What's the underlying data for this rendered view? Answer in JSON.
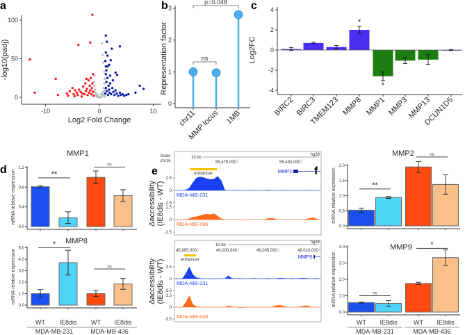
{
  "panel_labels": [
    "a",
    "b",
    "c",
    "d",
    "e",
    "f"
  ],
  "chart_data": [
    {
      "panel": "a",
      "type": "scatter",
      "xlabel": "Log2 Fold Change",
      "ylabel": "-log10(padj)",
      "xticks": [
        "-10",
        "0",
        "10"
      ],
      "xtick_values": [
        -10,
        0,
        10
      ],
      "yticks": [
        "0",
        "50",
        "100"
      ],
      "ytick_values": [
        0,
        50,
        100
      ],
      "series": [
        {
          "color": "#ff1a1a",
          "points": [
            [
              -1.3,
              107
            ],
            [
              -12.9,
              49
            ],
            [
              -3.9,
              68
            ],
            [
              -1.7,
              71
            ],
            [
              -8.1,
              24
            ],
            [
              -12,
              6
            ],
            [
              -7.7,
              3
            ],
            [
              -1.2,
              30
            ],
            [
              -6,
              5
            ],
            [
              -5.8,
              2
            ],
            [
              -5.5,
              8
            ],
            [
              -5,
              12
            ],
            [
              -4.8,
              4
            ],
            [
              -4.5,
              9
            ],
            [
              -4.2,
              6
            ],
            [
              -4,
              3
            ],
            [
              -3.8,
              10
            ],
            [
              -3.5,
              7
            ],
            [
              -3.2,
              5
            ],
            [
              -3,
              14
            ],
            [
              -2.8,
              4
            ],
            [
              -2.6,
              18
            ],
            [
              -2.5,
              8
            ],
            [
              -2.3,
              11
            ],
            [
              -2.2,
              3
            ],
            [
              -2,
              22
            ],
            [
              -1.9,
              6
            ],
            [
              -1.8,
              15
            ],
            [
              -1.7,
              9
            ],
            [
              -1.6,
              25
            ],
            [
              -1.5,
              4
            ],
            [
              -1.4,
              12
            ],
            [
              -1.3,
              18
            ],
            [
              -1.2,
              7
            ],
            [
              -2.4,
              24
            ],
            [
              -3.3,
              1
            ],
            [
              -4.6,
              1.5
            ],
            [
              -1.1,
              2
            ]
          ]
        },
        {
          "color": "#0a1fa8",
          "points": [
            [
              1.2,
              80
            ],
            [
              1.4,
              72
            ],
            [
              3.8,
              66
            ],
            [
              2.3,
              63
            ],
            [
              1.2,
              58
            ],
            [
              1.5,
              54
            ],
            [
              2.1,
              48
            ],
            [
              1.2,
              40
            ],
            [
              3.0,
              32
            ],
            [
              3.3,
              29
            ],
            [
              7.5,
              15
            ],
            [
              8.2,
              11
            ],
            [
              6.7,
              6
            ],
            [
              1.1,
              5
            ],
            [
              1.2,
              12
            ],
            [
              1.3,
              20
            ],
            [
              1.4,
              8
            ],
            [
              1.5,
              25
            ],
            [
              1.6,
              3
            ],
            [
              1.7,
              15
            ],
            [
              1.8,
              10
            ],
            [
              1.9,
              6
            ],
            [
              2,
              18
            ],
            [
              2.2,
              4
            ],
            [
              2.4,
              12
            ],
            [
              2.6,
              7
            ],
            [
              2.8,
              3
            ],
            [
              3,
              9
            ],
            [
              3.2,
              5
            ],
            [
              3.5,
              2
            ],
            [
              3.8,
              6
            ],
            [
              4,
              3
            ],
            [
              4.3,
              4
            ],
            [
              4.6,
              2
            ],
            [
              5,
              3
            ],
            [
              5.4,
              4
            ],
            [
              1.2,
              30
            ],
            [
              1.3,
              35
            ],
            [
              1.5,
              40
            ],
            [
              1.8,
              42
            ],
            [
              2.5,
              22
            ],
            [
              1.1,
              47
            ],
            [
              2.0,
              28
            ]
          ]
        },
        {
          "color": "#b8c4c0",
          "points": [
            [
              -1,
              20
            ],
            [
              -0.9,
              15
            ],
            [
              -0.8,
              10
            ],
            [
              -0.7,
              6
            ],
            [
              -0.6,
              4
            ],
            [
              -0.5,
              2
            ],
            [
              -0.4,
              1
            ],
            [
              -0.3,
              0.5
            ],
            [
              -0.2,
              0.2
            ],
            [
              0,
              0
            ],
            [
              0.2,
              0.3
            ],
            [
              0.4,
              1
            ],
            [
              0.5,
              2
            ],
            [
              0.6,
              4
            ],
            [
              0.7,
              7
            ],
            [
              0.8,
              12
            ],
            [
              0.9,
              18
            ],
            [
              1,
              24
            ],
            [
              -1,
              8
            ],
            [
              -0.8,
              3
            ],
            [
              0.8,
              3
            ],
            [
              1,
              9
            ],
            [
              -0.9,
              28
            ],
            [
              0.9,
              33
            ],
            [
              0.7,
              45
            ],
            [
              0.6,
              55
            ],
            [
              0.5,
              70
            ],
            [
              -1,
              2
            ],
            [
              1,
              1
            ],
            [
              -0.3,
              3
            ],
            [
              0.3,
              4
            ]
          ]
        }
      ]
    },
    {
      "panel": "b",
      "type": "lollipop",
      "ylabel": "Representation factor",
      "categories": [
        "chr11",
        "MMP locus",
        "1MB"
      ],
      "values": [
        1.0,
        0.97,
        2.8
      ],
      "yticks": [
        "0",
        "1",
        "2",
        "3"
      ],
      "ytick_values": [
        0,
        1,
        2,
        3
      ],
      "color": "#4aaef0",
      "annotations": [
        {
          "from": 0,
          "to": 1,
          "label": "ns"
        },
        {
          "from": 0,
          "to": 2,
          "label": "p=0.048"
        }
      ]
    },
    {
      "panel": "c",
      "type": "bar",
      "ylabel": "Log2FC",
      "categories": [
        "BIRC2",
        "BIRC3",
        "TMEM123",
        "MMP8",
        "MMP1",
        "MMP3",
        "MMP13",
        "DCUN1D5"
      ],
      "values": [
        0.1,
        0.7,
        0.3,
        2.0,
        -2.6,
        -1.05,
        -0.95,
        0.0
      ],
      "errors": [
        0.15,
        0.08,
        0.15,
        0.35,
        0.42,
        0.3,
        0.48,
        0.05
      ],
      "significance": [
        "",
        "",
        "",
        "*",
        "*",
        "",
        "",
        ""
      ],
      "yticks": [
        "-4",
        "-2",
        "0",
        "2",
        "4"
      ],
      "ytick_values": [
        -4,
        -2,
        0,
        2,
        4
      ],
      "colors": {
        "up": "#4a2ff0",
        "down": "#1c7d10"
      }
    },
    {
      "panel": "d",
      "type": "bar",
      "title": "MMP1",
      "ylabel": "mRNA relative expression",
      "values": [
        0.81,
        0.18,
        1.0,
        0.63
      ],
      "errors": [
        0.02,
        0.12,
        0.13,
        0.12
      ],
      "yticks": [
        "0.0",
        "0.4",
        "0.8",
        "1.2"
      ],
      "ytick_values": [
        0,
        0.4,
        0.8,
        1.2
      ],
      "comparisons": [
        {
          "from": 0,
          "to": 1,
          "label": "**",
          "level": 0.99
        },
        {
          "from": 2,
          "to": 3,
          "label": "ns",
          "level": 1.21
        }
      ]
    },
    {
      "panel": "d",
      "type": "bar",
      "title": "MMP8",
      "ylabel": "mRNA relative expression",
      "values": [
        1.0,
        3.7,
        1.0,
        1.85
      ],
      "errors": [
        0.35,
        1.08,
        0.25,
        0.47
      ],
      "yticks": [
        "0.0",
        "1.0",
        "2.0",
        "3.0",
        "4.0",
        "5.0"
      ],
      "ytick_values": [
        0,
        1,
        2,
        3,
        4,
        5
      ],
      "comparisons": [
        {
          "from": 0,
          "to": 1,
          "label": "*",
          "level": 5.0
        },
        {
          "from": 2,
          "to": 3,
          "label": "ns",
          "level": 3.15
        }
      ],
      "x_labels": [
        "WT",
        "IE8dis",
        "WT",
        "IE8dis"
      ],
      "groups": [
        "MDA-MB-231",
        "MDA-MB-436"
      ]
    },
    {
      "panel": "e",
      "type": "genome-tracks",
      "ylabel_line1": "Δaccessibility",
      "ylabel_line2": "(IE8dis - WT)",
      "loci": [
        {
          "scale_label": "Scale",
          "chrom": "chr16",
          "scalebar": "10 kb",
          "assembly": "hg38",
          "coords": [
            "55,475,000",
            "55,480,000"
          ],
          "enhancer_label": "enhancer",
          "gene": "MMP2",
          "yticks": [
            "2.5",
            "0",
            "-2.5"
          ],
          "ymax": 2.5,
          "tracks": [
            {
              "name": "MDA-MB-231",
              "color": "#1a3ff0",
              "signal": [
                0,
                0,
                0,
                0.1,
                0.5,
                1.6,
                2.5,
                2.7,
                2.6,
                2.3,
                2.2,
                2.3,
                2.8,
                2.0,
                0.1,
                0,
                0,
                0,
                0.05,
                0,
                0,
                0,
                0.05,
                0,
                0,
                0,
                0.1,
                0.05,
                0,
                0,
                0,
                0.05,
                0,
                0,
                0.05,
                0,
                0,
                0,
                0.05,
                0,
                0,
                0
              ]
            },
            {
              "name": "MDA-MB-436",
              "color": "#ff6a1a",
              "signal": [
                0,
                0,
                0,
                0,
                0.2,
                0.5,
                0.6,
                0.8,
                1.0,
                1.1,
                1.0,
                1.2,
                0.7,
                0.2,
                0,
                0,
                0,
                0,
                0,
                -0.05,
                0,
                0,
                0,
                0,
                0,
                0,
                0.2,
                0.3,
                0.2,
                0,
                0,
                0,
                0,
                0,
                0,
                0,
                0,
                0.1,
                0.3,
                0.4,
                0.1,
                0
              ]
            }
          ]
        },
        {
          "scalebar": "10 kb",
          "assembly": "hg38",
          "coords": [
            "45,995,000",
            "46,000,000",
            "46,005,000",
            "46,010,000"
          ],
          "enhancer_label": "enhancer",
          "gene": "MMP9",
          "yticks": [
            "3.5",
            "0",
            "-3.5"
          ],
          "ymax": 3.5,
          "tracks": [
            {
              "name": "MDA-MB-231",
              "color": "#1a3ff0",
              "signal": [
                0,
                0,
                0,
                1.5,
                3.5,
                1.2,
                0.3,
                0.1,
                0,
                0,
                0,
                0,
                0.05,
                0,
                0,
                0.9,
                0.1,
                0,
                0.1,
                0.05,
                0,
                0,
                0.1,
                0.05,
                0,
                0,
                0.1,
                0,
                0,
                0.1,
                0.15,
                0.1,
                0,
                0.1,
                0,
                0.1,
                0.15,
                0.1,
                0,
                0,
                0.1,
                0
              ]
            },
            {
              "name": "MDA-MB-436",
              "color": "#ff6a1a",
              "signal": [
                0,
                0,
                0,
                1.4,
                3.4,
                0.8,
                0.2,
                0.05,
                0,
                0,
                0,
                0,
                0,
                0,
                0,
                0.4,
                0.2,
                0,
                -0.1,
                -0.1,
                0,
                0,
                0,
                0,
                -0.05,
                0,
                0,
                0,
                0.3,
                0.6,
                0.5,
                0.2,
                0,
                0,
                0,
                0.1,
                0.3,
                0.5,
                0.2,
                0,
                0,
                0
              ]
            }
          ]
        }
      ]
    },
    {
      "panel": "f",
      "type": "bar",
      "title": "MMP2",
      "ylabel": "mRNA relative expression",
      "values": [
        0.52,
        0.94,
        1.95,
        1.37
      ],
      "errors": [
        0.07,
        0.03,
        0.18,
        0.32
      ],
      "yticks": [
        "0.0",
        "0.5",
        "1.0",
        "1.5",
        "2.0"
      ],
      "ytick_values": [
        0,
        0.5,
        1,
        1.5,
        2
      ],
      "comparisons": [
        {
          "from": 0,
          "to": 1,
          "label": "**",
          "level": 1.22
        },
        {
          "from": 2,
          "to": 3,
          "label": "ns",
          "level": 2.28
        }
      ]
    },
    {
      "panel": "f",
      "type": "bar",
      "title": "MMP9",
      "ylabel": "mRNA relative expression",
      "values": [
        0.58,
        0.53,
        1.75,
        3.33
      ],
      "errors": [
        0.03,
        0.17,
        0.07,
        0.47
      ],
      "yticks": [
        "0.0",
        "1.0",
        "2.0",
        "3.0",
        "4.0"
      ],
      "ytick_values": [
        0,
        1,
        2,
        3,
        4
      ],
      "comparisons": [
        {
          "from": 2,
          "to": 3,
          "label": "*",
          "level": 3.9
        },
        {
          "from": 0,
          "to": 1,
          "label": "ns",
          "level": 1.0
        }
      ],
      "x_labels": [
        "WT",
        "IE8dis",
        "WT",
        "IE8dis"
      ],
      "groups": [
        "MDA-MB-231",
        "MDA-MB-436"
      ]
    }
  ],
  "bar_colors": [
    "#1a4ff0",
    "#4dd4f7",
    "#ff4a12",
    "#fbbf8a"
  ]
}
